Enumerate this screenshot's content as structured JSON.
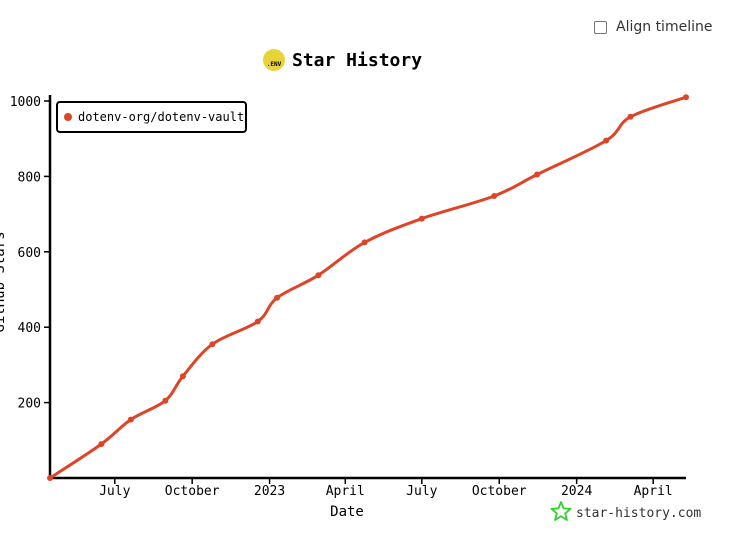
{
  "controls": {
    "align_label": "Align timeline"
  },
  "title": {
    "text": "Star History",
    "logo_text": ".ENV",
    "logo_color": "#e8d43a"
  },
  "watermark": {
    "text": "star-history.com",
    "color": "#2fd22f"
  },
  "colors": {
    "series": "#dd4528",
    "axis": "#000000"
  },
  "chart_data": {
    "type": "line",
    "title": "Star History",
    "xlabel": "Date",
    "ylabel": "GitHub Stars",
    "x_ticks": [
      "July",
      "October",
      "2023",
      "April",
      "July",
      "October",
      "2024",
      "April"
    ],
    "x_tick_dates": [
      "2022-07-01",
      "2022-10-01",
      "2023-01-01",
      "2023-04-01",
      "2023-07-01",
      "2023-10-01",
      "2024-01-01",
      "2024-04-01"
    ],
    "y_ticks": [
      200,
      400,
      600,
      800,
      1000
    ],
    "ylim": [
      0,
      1000
    ],
    "xlim": [
      "2022-04-15",
      "2024-05-10"
    ],
    "grid": false,
    "legend": "top-left",
    "series": [
      {
        "name": "dotenv-org/dotenv-vault",
        "color": "#dd4528",
        "points": [
          [
            "2022-04-15",
            0
          ],
          [
            "2022-06-15",
            90
          ],
          [
            "2022-07-20",
            155
          ],
          [
            "2022-08-30",
            205
          ],
          [
            "2022-09-20",
            270
          ],
          [
            "2022-10-25",
            355
          ],
          [
            "2022-12-18",
            415
          ],
          [
            "2023-01-10",
            478
          ],
          [
            "2023-02-28",
            538
          ],
          [
            "2023-04-24",
            625
          ],
          [
            "2023-07-01",
            688
          ],
          [
            "2023-09-25",
            748
          ],
          [
            "2023-11-15",
            805
          ],
          [
            "2024-02-05",
            895
          ],
          [
            "2024-03-05",
            958
          ],
          [
            "2024-05-10",
            1010
          ]
        ]
      }
    ]
  }
}
